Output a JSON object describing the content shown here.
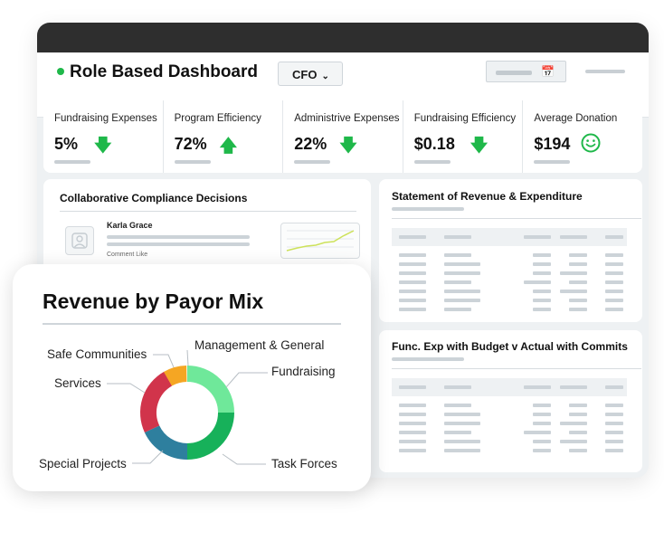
{
  "header": {
    "title": "Role Based Dashboard",
    "role": "CFO"
  },
  "kpis": [
    {
      "label": "Fundraising Expenses",
      "value": "5%",
      "trend": "down"
    },
    {
      "label": "Program Efficiency",
      "value": "72%",
      "trend": "up"
    },
    {
      "label": "Administrive Expenses",
      "value": "22%",
      "trend": "down"
    },
    {
      "label": "Fundraising Efficiency",
      "value": "$0.18",
      "trend": "down"
    },
    {
      "label": "Average Donation",
      "value": "$194",
      "trend": "smile"
    }
  ],
  "compliance": {
    "title": "Collaborative Compliance Decisions",
    "comment_author": "Karla Grace",
    "comment_actions": "Comment   Like"
  },
  "statement": {
    "title": "Statement of Revenue & Expenditure"
  },
  "funcexp": {
    "title": "Func. Exp with Budget v Actual with Commits"
  },
  "payor": {
    "title": "Revenue by Payor Mix",
    "labels": {
      "safe": "Safe Communities",
      "mgmt": "Management & General",
      "services": "Services",
      "fundraising": "Fundraising",
      "special": "Special Projects",
      "task": "Task Forces"
    }
  },
  "colors": {
    "accent_green": "#1fb84a",
    "fundraising": "#6fe89a",
    "task_forces": "#17b15a",
    "special_projects": "#2e7f9e",
    "services": "#d1344b",
    "management_general": "#f5a623"
  }
}
